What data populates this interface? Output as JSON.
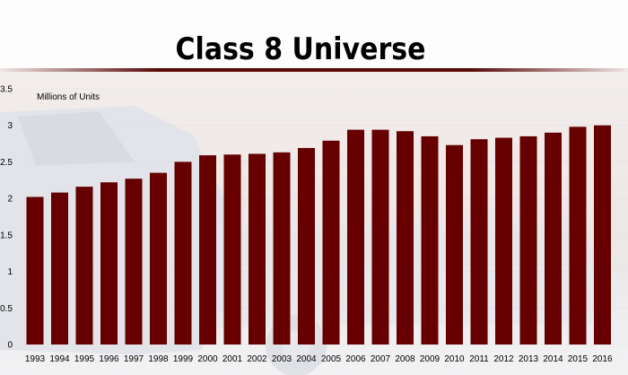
{
  "title": "Class 8 Universe",
  "colors": {
    "bar": "#660000",
    "rule_dark": "#5a0a0a",
    "gridline": "#d9d9d9"
  },
  "chart_data": {
    "type": "bar",
    "title": "Class 8 Universe",
    "unit_label": "Millions of Units",
    "xlabel": "",
    "ylabel": "",
    "ylim": [
      0,
      3.5
    ],
    "yticks": [
      "0",
      "0.5",
      "1",
      "1.5",
      "2",
      "2.5",
      "3",
      "3.5"
    ],
    "grid": true,
    "categories": [
      "1993",
      "1994",
      "1995",
      "1996",
      "1997",
      "1998",
      "1999",
      "2000",
      "2001",
      "2002",
      "2003",
      "2004",
      "2005",
      "2006",
      "2007",
      "2008",
      "2009",
      "2010",
      "2011",
      "2012",
      "2013",
      "2014",
      "2015",
      "2016"
    ],
    "values": [
      2.02,
      2.08,
      2.16,
      2.22,
      2.27,
      2.35,
      2.5,
      2.59,
      2.6,
      2.61,
      2.63,
      2.69,
      2.79,
      2.94,
      2.94,
      2.92,
      2.85,
      2.73,
      2.81,
      2.83,
      2.85,
      2.9,
      2.98,
      3.0
    ]
  }
}
